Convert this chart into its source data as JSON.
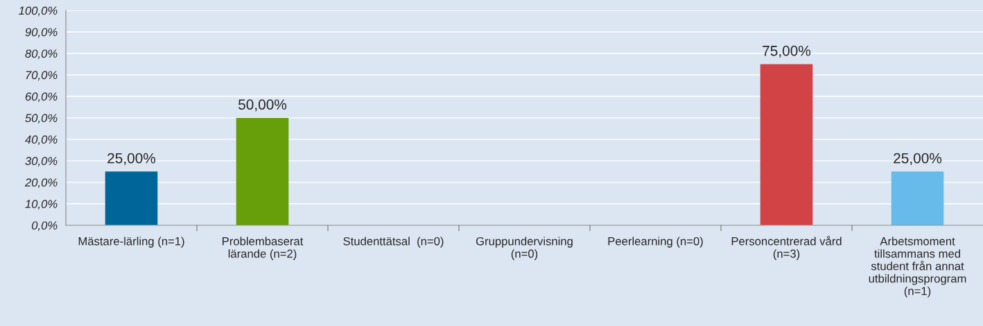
{
  "chart_data": {
    "type": "bar",
    "categories": [
      "Mästare-lärling (n=1)",
      "Problembaserat\nlärande (n=2)",
      "Studenttätsal  (n=0)",
      "Gruppundervisning\n(n=0)",
      "Peerlearning (n=0)",
      "Personcentrerad vård\n(n=3)",
      "Arbetsmoment\ntillsammans med\nstudent från annat\nutbildningsprogram\n(n=1)"
    ],
    "values": [
      25,
      50,
      0,
      0,
      0,
      75,
      25
    ],
    "colors": [
      "#006699",
      "#669f0a",
      "#006699",
      "#006699",
      "#006699",
      "#d24346",
      "#66bbea"
    ],
    "value_labels": [
      "25,00%",
      "50,00%",
      null,
      null,
      null,
      "75,00%",
      "25,00%"
    ],
    "ylim": [
      0,
      100
    ],
    "yticks": [
      {
        "value": 0,
        "label": "0,0%"
      },
      {
        "value": 10,
        "label": "10,0%"
      },
      {
        "value": 20,
        "label": "20,0%"
      },
      {
        "value": 30,
        "label": "30,0%"
      },
      {
        "value": 40,
        "label": "40,0%"
      },
      {
        "value": 50,
        "label": "50,0%"
      },
      {
        "value": 60,
        "label": "60,0%"
      },
      {
        "value": 70,
        "label": "70,0%"
      },
      {
        "value": 80,
        "label": "80,0%"
      },
      {
        "value": 90,
        "label": "90,0%"
      },
      {
        "value": 100,
        "label": "100,0%"
      }
    ],
    "grid": "y",
    "legend": false
  }
}
